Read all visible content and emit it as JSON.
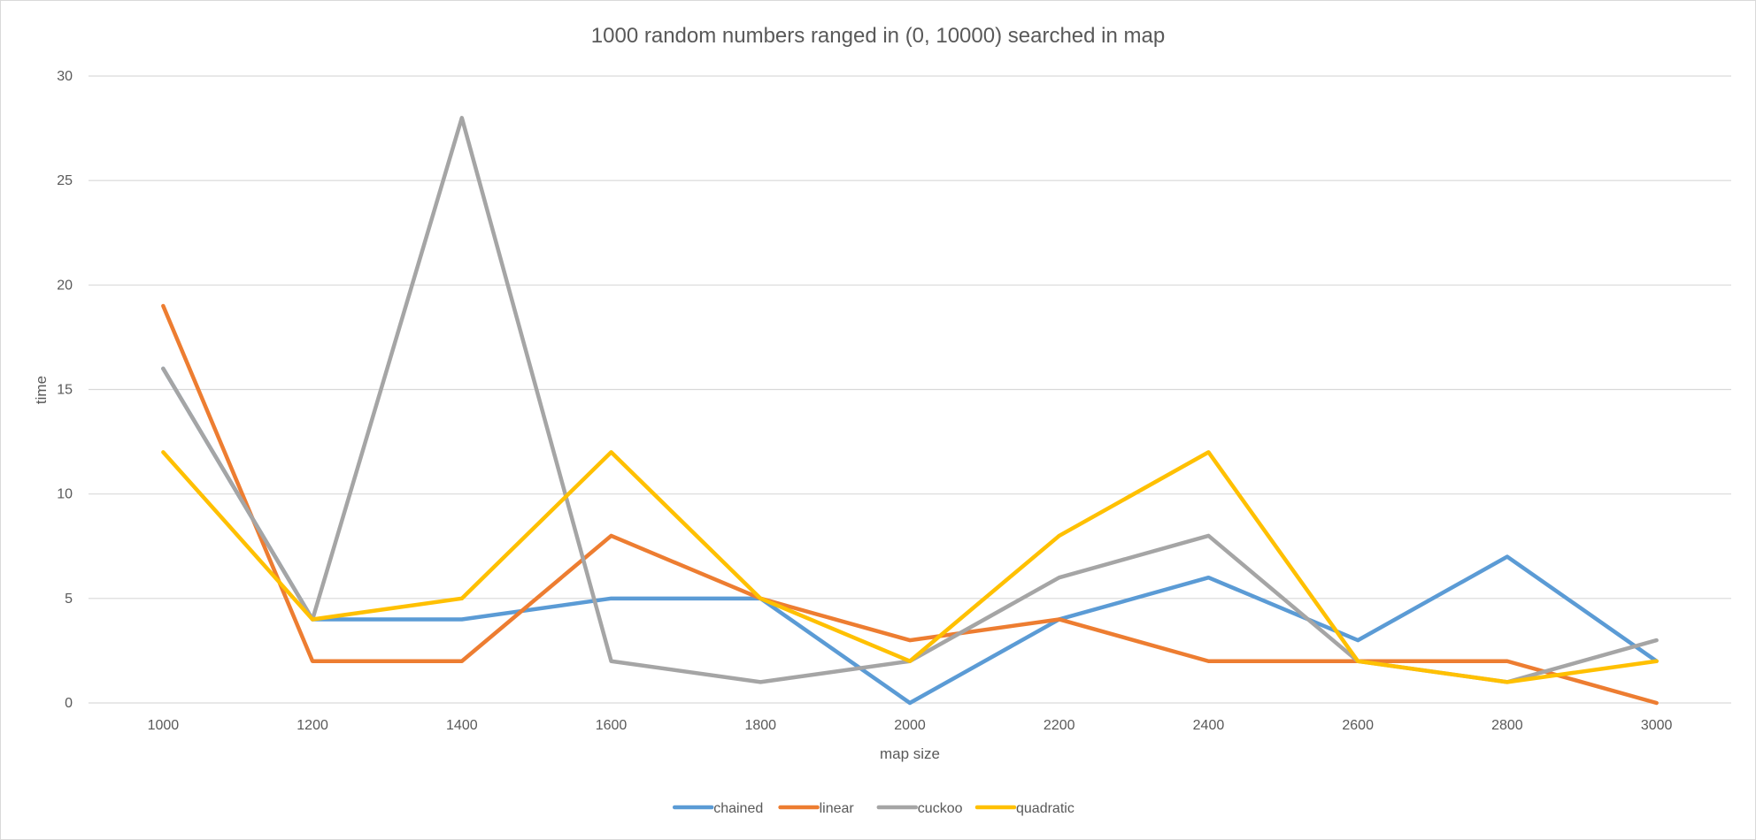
{
  "chart_data": {
    "type": "line",
    "title": "1000 random numbers ranged in (0, 10000) searched in map",
    "xlabel": "map size",
    "ylabel": "time",
    "categories": [
      "1000",
      "1200",
      "1400",
      "1600",
      "1800",
      "2000",
      "2200",
      "2400",
      "2600",
      "2800",
      "3000"
    ],
    "ylim": [
      0,
      30
    ],
    "yticks": [
      "0",
      "5",
      "10",
      "15",
      "20",
      "25",
      "30"
    ],
    "grid": true,
    "legend_position": "bottom",
    "series": [
      {
        "name": "chained",
        "color": "#5b9bd5",
        "values": [
          16,
          4,
          4,
          5,
          5,
          0,
          4,
          6,
          3,
          7,
          2
        ]
      },
      {
        "name": "linear",
        "color": "#ed7d31",
        "values": [
          19,
          2,
          2,
          8,
          5,
          3,
          4,
          2,
          2,
          2,
          0
        ]
      },
      {
        "name": "cuckoo",
        "color": "#a5a5a5",
        "values": [
          16,
          4,
          28,
          2,
          1,
          2,
          6,
          8,
          2,
          1,
          3
        ]
      },
      {
        "name": "quadratic",
        "color": "#ffc000",
        "values": [
          12,
          4,
          5,
          12,
          5,
          2,
          8,
          12,
          2,
          1,
          2
        ]
      }
    ]
  }
}
